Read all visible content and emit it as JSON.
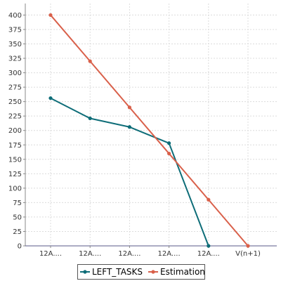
{
  "chart_data": {
    "type": "line",
    "title": "",
    "xlabel": "",
    "ylabel": "",
    "categories": [
      "12A....",
      "12A....",
      "12A....",
      "12A....",
      "12A....",
      "V(n+1)"
    ],
    "ylim": [
      0,
      420
    ],
    "yticks": [
      0,
      25,
      50,
      75,
      100,
      125,
      150,
      175,
      200,
      225,
      250,
      275,
      300,
      325,
      350,
      375,
      400
    ],
    "grid": true,
    "legend_position": "bottom",
    "series": [
      {
        "name": "LEFT_TASKS",
        "color": "#0e6d78",
        "values": [
          256,
          221,
          206,
          178,
          0,
          null
        ]
      },
      {
        "name": "Estimation",
        "color": "#d9604a",
        "values": [
          400,
          320,
          240,
          160,
          80,
          0
        ]
      }
    ]
  }
}
